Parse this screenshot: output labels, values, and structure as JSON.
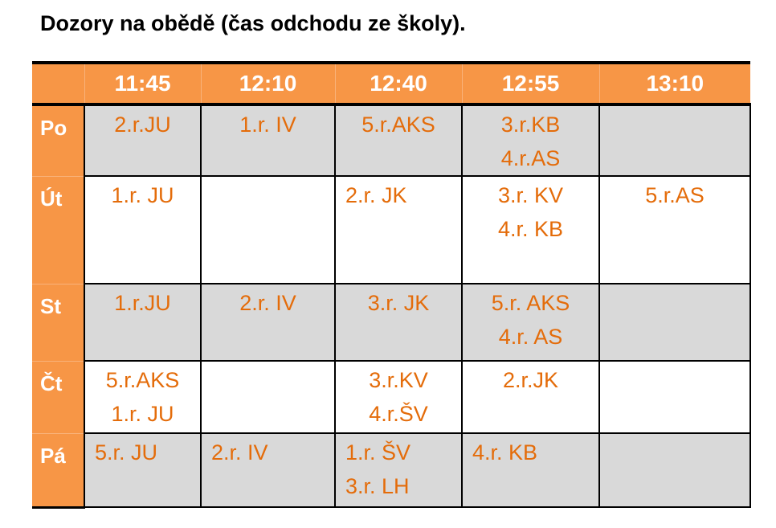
{
  "title": "Dozory na obědě (čas odchodu ze školy).",
  "table": {
    "headers": [
      "",
      "11:45",
      "12:10",
      "12:40",
      "12:55",
      "13:10"
    ],
    "rows": [
      {
        "day": "Po",
        "shaded": true,
        "cells": [
          {
            "lines": [
              "2.r.JU"
            ],
            "align": "center"
          },
          {
            "lines": [
              "1.r. IV"
            ],
            "align": "center"
          },
          {
            "lines": [
              "5.r.AKS"
            ],
            "align": "center"
          },
          {
            "lines": [
              "3.r.KB",
              "4.r.AS"
            ],
            "align": "center"
          },
          {
            "lines": [],
            "align": "center"
          }
        ]
      },
      {
        "day": "Út",
        "shaded": false,
        "cells": [
          {
            "lines": [
              "1.r. JU"
            ],
            "align": "center"
          },
          {
            "lines": [],
            "align": "center"
          },
          {
            "lines": [
              "2.r. JK"
            ],
            "align": "left"
          },
          {
            "lines": [
              "3.r. KV",
              "4.r. KB"
            ],
            "align": "center"
          },
          {
            "lines": [
              "5.r.AS"
            ],
            "align": "center"
          }
        ]
      },
      {
        "day": "St",
        "shaded": true,
        "cells": [
          {
            "lines": [
              "1.r.JU"
            ],
            "align": "center"
          },
          {
            "lines": [
              "2.r. IV"
            ],
            "align": "center"
          },
          {
            "lines": [
              "3.r. JK"
            ],
            "align": "center"
          },
          {
            "lines": [
              "5.r. AKS",
              "4.r. AS"
            ],
            "align": "center"
          },
          {
            "lines": [],
            "align": "center"
          }
        ]
      },
      {
        "day": "Čt",
        "shaded": false,
        "cells": [
          {
            "lines": [
              "5.r.AKS",
              "1.r. JU"
            ],
            "align": "center"
          },
          {
            "lines": [],
            "align": "center"
          },
          {
            "lines": [
              "3.r.KV",
              "4.r.ŠV"
            ],
            "align": "center"
          },
          {
            "lines": [
              "2.r.JK"
            ],
            "align": "center"
          },
          {
            "lines": [],
            "align": "center"
          }
        ]
      },
      {
        "day": "Pá",
        "shaded": true,
        "cells": [
          {
            "lines": [
              "5.r. JU"
            ],
            "align": "left"
          },
          {
            "lines": [
              "2.r. IV"
            ],
            "align": "left"
          },
          {
            "lines": [
              "1.r. ŠV",
              "3.r. LH"
            ],
            "align": "left"
          },
          {
            "lines": [
              "4.r. KB"
            ],
            "align": "left"
          },
          {
            "lines": [],
            "align": "center"
          }
        ]
      }
    ]
  },
  "colors": {
    "header": "#F79646",
    "text": "#E46C0A",
    "shaded": "#D9D9D9"
  }
}
